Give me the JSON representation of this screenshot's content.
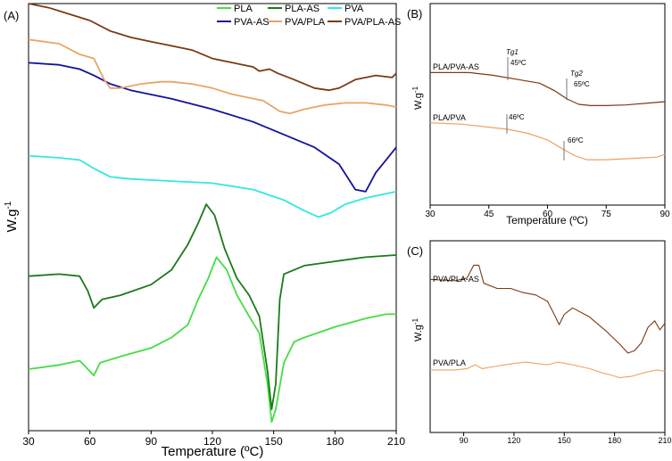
{
  "chart_data": [
    {
      "panel": "(A)",
      "type": "line",
      "xlabel": "Temperature (ºC)",
      "ylabel": "W.g-1",
      "xlim": [
        30,
        210
      ],
      "x_ticks": [
        "30",
        "60",
        "90",
        "120",
        "150",
        "180",
        "210"
      ],
      "y_ticks": "none",
      "legend_position": "top-right",
      "series": [
        {
          "name": "PLA",
          "color": "#44dd44",
          "points": [
            [
              30,
              0.865
            ],
            [
              45,
              0.855
            ],
            [
              55,
              0.845
            ],
            [
              60,
              0.87
            ],
            [
              62,
              0.88
            ],
            [
              65,
              0.85
            ],
            [
              75,
              0.835
            ],
            [
              90,
              0.815
            ],
            [
              100,
              0.79
            ],
            [
              108,
              0.76
            ],
            [
              113,
              0.7
            ],
            [
              118,
              0.65
            ],
            [
              122,
              0.6
            ],
            [
              127,
              0.63
            ],
            [
              132,
              0.69
            ],
            [
              138,
              0.74
            ],
            [
              143,
              0.78
            ],
            [
              147,
              0.9
            ],
            [
              149,
              0.99
            ],
            [
              151,
              0.96
            ],
            [
              155,
              0.85
            ],
            [
              160,
              0.8
            ],
            [
              165,
              0.79
            ],
            [
              180,
              0.765
            ],
            [
              195,
              0.745
            ],
            [
              205,
              0.735
            ],
            [
              210,
              0.735
            ]
          ]
        },
        {
          "name": "PLA-AS",
          "color": "#1a7a1a",
          "points": [
            [
              30,
              0.645
            ],
            [
              45,
              0.64
            ],
            [
              55,
              0.645
            ],
            [
              59,
              0.68
            ],
            [
              62,
              0.72
            ],
            [
              66,
              0.7
            ],
            [
              75,
              0.69
            ],
            [
              90,
              0.665
            ],
            [
              100,
              0.63
            ],
            [
              108,
              0.57
            ],
            [
              113,
              0.52
            ],
            [
              117,
              0.475
            ],
            [
              121,
              0.5
            ],
            [
              126,
              0.58
            ],
            [
              132,
              0.65
            ],
            [
              138,
              0.69
            ],
            [
              143,
              0.74
            ],
            [
              147,
              0.87
            ],
            [
              149,
              0.96
            ],
            [
              151,
              0.9
            ],
            [
              153,
              0.7
            ],
            [
              155,
              0.64
            ],
            [
              165,
              0.62
            ],
            [
              180,
              0.61
            ],
            [
              195,
              0.6
            ],
            [
              210,
              0.595
            ]
          ]
        },
        {
          "name": "PVA",
          "color": "#33e8e0",
          "points": [
            [
              30,
              0.36
            ],
            [
              45,
              0.365
            ],
            [
              55,
              0.37
            ],
            [
              62,
              0.39
            ],
            [
              70,
              0.41
            ],
            [
              80,
              0.415
            ],
            [
              100,
              0.42
            ],
            [
              120,
              0.425
            ],
            [
              140,
              0.44
            ],
            [
              155,
              0.465
            ],
            [
              165,
              0.49
            ],
            [
              172,
              0.505
            ],
            [
              178,
              0.495
            ],
            [
              185,
              0.475
            ],
            [
              195,
              0.46
            ],
            [
              205,
              0.45
            ],
            [
              210,
              0.445
            ]
          ]
        },
        {
          "name": "PVA-AS",
          "color": "#121299",
          "points": [
            [
              30,
              0.14
            ],
            [
              45,
              0.145
            ],
            [
              55,
              0.155
            ],
            [
              62,
              0.17
            ],
            [
              70,
              0.19
            ],
            [
              80,
              0.205
            ],
            [
              100,
              0.225
            ],
            [
              120,
              0.25
            ],
            [
              140,
              0.28
            ],
            [
              155,
              0.31
            ],
            [
              170,
              0.34
            ],
            [
              182,
              0.38
            ],
            [
              190,
              0.44
            ],
            [
              195,
              0.445
            ],
            [
              200,
              0.4
            ],
            [
              205,
              0.37
            ],
            [
              210,
              0.34
            ]
          ]
        },
        {
          "name": "PVA/PLA",
          "color": "#e9a466",
          "points": [
            [
              30,
              0.085
            ],
            [
              45,
              0.095
            ],
            [
              55,
              0.12
            ],
            [
              62,
              0.13
            ],
            [
              67,
              0.18
            ],
            [
              70,
              0.2
            ],
            [
              75,
              0.2
            ],
            [
              85,
              0.19
            ],
            [
              95,
              0.185
            ],
            [
              100,
              0.185
            ],
            [
              110,
              0.19
            ],
            [
              120,
              0.2
            ],
            [
              130,
              0.215
            ],
            [
              145,
              0.23
            ],
            [
              153,
              0.255
            ],
            [
              158,
              0.26
            ],
            [
              165,
              0.25
            ],
            [
              175,
              0.24
            ],
            [
              185,
              0.235
            ],
            [
              195,
              0.235
            ],
            [
              205,
              0.24
            ],
            [
              210,
              0.245
            ]
          ]
        },
        {
          "name": "PVA/PLA-AS",
          "color": "#7a3b12",
          "points": [
            [
              30,
              0.0
            ],
            [
              40,
              0.01
            ],
            [
              50,
              0.025
            ],
            [
              60,
              0.04
            ],
            [
              70,
              0.065
            ],
            [
              80,
              0.08
            ],
            [
              90,
              0.09
            ],
            [
              100,
              0.1
            ],
            [
              110,
              0.11
            ],
            [
              120,
              0.13
            ],
            [
              130,
              0.14
            ],
            [
              140,
              0.15
            ],
            [
              143,
              0.16
            ],
            [
              148,
              0.155
            ],
            [
              152,
              0.165
            ],
            [
              160,
              0.18
            ],
            [
              170,
              0.2
            ],
            [
              177,
              0.205
            ],
            [
              182,
              0.2
            ],
            [
              190,
              0.18
            ],
            [
              200,
              0.17
            ],
            [
              208,
              0.175
            ],
            [
              210,
              0.165
            ]
          ]
        }
      ]
    },
    {
      "panel": "(B)",
      "type": "line",
      "xlabel": "Temperature (ºC)",
      "ylabel": "W.g-1",
      "xlim": [
        30,
        90
      ],
      "x_ticks": [
        "30",
        "45",
        "60",
        "75",
        "90"
      ],
      "y_ticks": "none",
      "series": [
        {
          "name": "PLA/PVA-AS",
          "color": "#7a3b12",
          "points": [
            [
              30,
              0.28
            ],
            [
              40,
              0.28
            ],
            [
              46,
              0.3
            ],
            [
              52,
              0.33
            ],
            [
              58,
              0.36
            ],
            [
              62,
              0.42
            ],
            [
              65,
              0.48
            ],
            [
              68,
              0.52
            ],
            [
              71,
              0.53
            ],
            [
              75,
              0.53
            ],
            [
              80,
              0.525
            ],
            [
              86,
              0.51
            ],
            [
              90,
              0.5
            ]
          ]
        },
        {
          "name": "PLA/PVA",
          "color": "#e9a466",
          "points": [
            [
              30,
              0.66
            ],
            [
              38,
              0.67
            ],
            [
              44,
              0.69
            ],
            [
              50,
              0.71
            ],
            [
              55,
              0.74
            ],
            [
              60,
              0.79
            ],
            [
              64,
              0.86
            ],
            [
              67,
              0.91
            ],
            [
              70,
              0.94
            ],
            [
              75,
              0.94
            ],
            [
              82,
              0.93
            ],
            [
              88,
              0.92
            ],
            [
              90,
              0.9
            ]
          ]
        }
      ],
      "annotations": [
        {
          "label": "Tg1",
          "value": "45ºC"
        },
        {
          "label": "Tg2",
          "value": "65ºC"
        },
        {
          "label": "",
          "value": "46ºC"
        },
        {
          "label": "",
          "value": "66ºC"
        }
      ]
    },
    {
      "panel": "(C)",
      "type": "line",
      "xlabel": "",
      "ylabel": "W.g-1",
      "xlim": [
        70,
        210
      ],
      "x_ticks": [
        "90",
        "120",
        "150",
        "180",
        "210"
      ],
      "y_ticks": "none",
      "series": [
        {
          "name": "PVA/PLA-AS",
          "color": "#7a3b12",
          "points": [
            [
              70,
              0.23
            ],
            [
              85,
              0.24
            ],
            [
              92,
              0.22
            ],
            [
              96,
              0.12
            ],
            [
              99,
              0.12
            ],
            [
              102,
              0.26
            ],
            [
              110,
              0.3
            ],
            [
              118,
              0.3
            ],
            [
              125,
              0.33
            ],
            [
              133,
              0.35
            ],
            [
              140,
              0.4
            ],
            [
              144,
              0.5
            ],
            [
              147,
              0.58
            ],
            [
              150,
              0.5
            ],
            [
              155,
              0.45
            ],
            [
              165,
              0.52
            ],
            [
              175,
              0.63
            ],
            [
              183,
              0.73
            ],
            [
              188,
              0.8
            ],
            [
              192,
              0.78
            ],
            [
              196,
              0.72
            ],
            [
              200,
              0.6
            ],
            [
              204,
              0.55
            ],
            [
              207,
              0.62
            ],
            [
              210,
              0.57
            ]
          ]
        },
        {
          "name": "PVA/PLA",
          "color": "#e9a466",
          "points": [
            [
              70,
              0.93
            ],
            [
              85,
              0.93
            ],
            [
              92,
              0.92
            ],
            [
              97,
              0.89
            ],
            [
              101,
              0.92
            ],
            [
              110,
              0.9
            ],
            [
              120,
              0.88
            ],
            [
              127,
              0.87
            ],
            [
              133,
              0.88
            ],
            [
              140,
              0.89
            ],
            [
              146,
              0.87
            ],
            [
              155,
              0.89
            ],
            [
              165,
              0.92
            ],
            [
              172,
              0.95
            ],
            [
              178,
              0.97
            ],
            [
              183,
              0.99
            ],
            [
              190,
              0.98
            ],
            [
              198,
              0.95
            ],
            [
              205,
              0.93
            ],
            [
              210,
              0.94
            ]
          ]
        }
      ]
    }
  ],
  "figure": {
    "panelA_label": "(A)",
    "panelB_label": "(B)",
    "panelC_label": "(C)",
    "ylabel_text": "W.g",
    "ylabel_sup": "-1",
    "xlabel_text": "Temperature (ºC)",
    "b_text": {
      "label_pla_pva_as": "PLA/PVA-AS",
      "label_pla_pva": "PLA/PVA",
      "tg1": "Tg1",
      "tg2": "Tg2",
      "v45": "45ºC",
      "v65": "65ºC",
      "v46": "46ºC",
      "v66": "66ºC"
    },
    "c_text": {
      "label_pva_pla_as": "PVA/PLA-AS",
      "label_pva_pla": "PVA/PLA"
    }
  }
}
